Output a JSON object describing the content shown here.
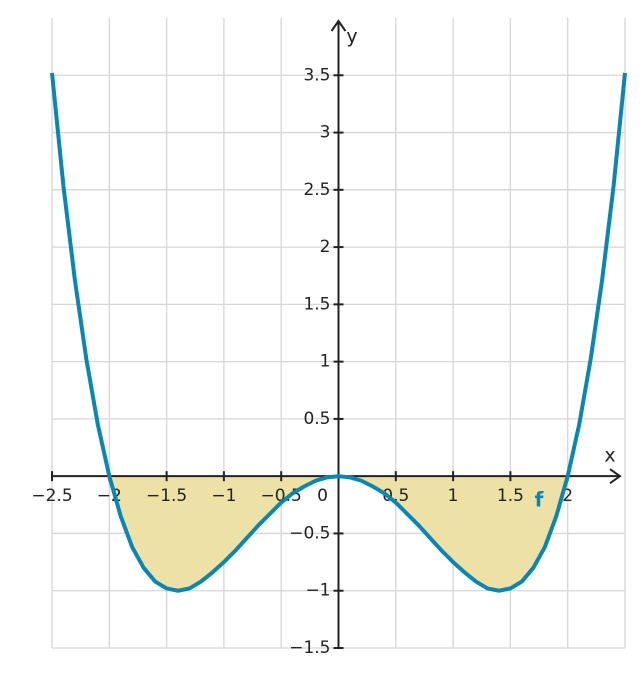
{
  "chart_data": {
    "type": "line",
    "x_label": "x",
    "y_label": "y",
    "x": [
      -2.5,
      -2.4,
      -2.3,
      -2.2,
      -2.1,
      -2.0,
      -1.9,
      -1.8,
      -1.7,
      -1.6,
      -1.5,
      -1.4,
      -1.3,
      -1.2,
      -1.1,
      -1.0,
      -0.9,
      -0.8,
      -0.7,
      -0.6,
      -0.5,
      -0.4,
      -0.3,
      -0.2,
      -0.1,
      0,
      0.1,
      0.2,
      0.3,
      0.4,
      0.5,
      0.6,
      0.7,
      0.8,
      0.9,
      1.0,
      1.1,
      1.2,
      1.3,
      1.4,
      1.5,
      1.6,
      1.7,
      1.8,
      1.9,
      2.0,
      2.1,
      2.2,
      2.3,
      2.4,
      2.5
    ],
    "series": [
      {
        "name": "f",
        "color": "#0a86b4",
        "fill": "#ede1a5",
        "values": [
          3.52,
          2.53,
          1.71,
          1.02,
          0.45,
          0,
          -0.35,
          -0.62,
          -0.8,
          -0.92,
          -0.98,
          -1.0,
          -0.98,
          -0.92,
          -0.84,
          -0.75,
          -0.65,
          -0.54,
          -0.43,
          -0.33,
          -0.23,
          -0.15,
          -0.09,
          -0.04,
          -0.01,
          0,
          -0.01,
          -0.04,
          -0.09,
          -0.15,
          -0.23,
          -0.33,
          -0.43,
          -0.54,
          -0.65,
          -0.75,
          -0.84,
          -0.92,
          -0.98,
          -1.0,
          -0.98,
          -0.92,
          -0.8,
          -0.62,
          -0.35,
          0,
          0.45,
          1.02,
          1.71,
          2.53,
          3.52
        ]
      }
    ],
    "xlim": [
      -2.5,
      2.5
    ],
    "ylim": [
      -1.5,
      4
    ],
    "xticks": [
      {
        "value": -2.5,
        "label": "−2.5"
      },
      {
        "value": -2,
        "label": "−2"
      },
      {
        "value": -1.5,
        "label": "−1.5"
      },
      {
        "value": -1,
        "label": "−1"
      },
      {
        "value": -0.5,
        "label": "−0.5"
      },
      0,
      0.5,
      1,
      1.5,
      2
    ],
    "yticks": [
      {
        "value": -1.5,
        "label": "−1.5"
      },
      {
        "value": -1,
        "label": "−1"
      },
      {
        "value": -0.5,
        "label": "−0.5"
      },
      0.5,
      1,
      1.5,
      2,
      2.5,
      3,
      3.5
    ],
    "fill_range": [
      -2,
      2
    ],
    "grid": true
  }
}
